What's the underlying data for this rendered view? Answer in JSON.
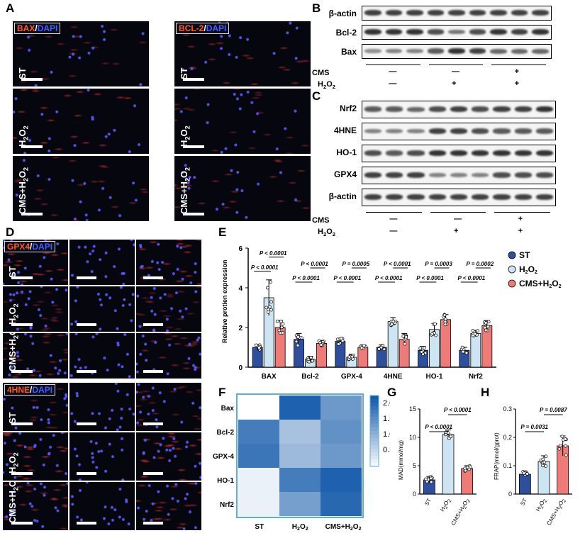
{
  "panels": {
    "A": "A",
    "B": "B",
    "C": "C",
    "D": "D",
    "E": "E",
    "F": "F",
    "G": "G",
    "H": "H"
  },
  "panelA": {
    "tag1": [
      "BAX",
      "/",
      "DAPI"
    ],
    "tag2": [
      "BCL-2",
      "/",
      "DAPI"
    ],
    "rows": [
      "ST",
      "H2O2",
      "CMS+H2O2"
    ]
  },
  "panelB": {
    "bands": [
      "β-actin",
      "Bcl-2",
      "Bax"
    ],
    "cms": [
      "—",
      "—",
      "+"
    ],
    "h2o2": [
      "—",
      "+",
      "+"
    ],
    "cms_label": "CMS",
    "h2o2_label": "H2O2"
  },
  "panelC": {
    "bands": [
      "Nrf2",
      "4HNE",
      "HO-1",
      "GPX4",
      "β-actin"
    ],
    "cms": [
      "—",
      "—",
      "+"
    ],
    "h2o2": [
      "—",
      "+",
      "+"
    ],
    "cms_label": "CMS",
    "h2o2_label": "H2O2"
  },
  "panelD": {
    "tag1": [
      "GPX4",
      "/",
      "DAPI"
    ],
    "tag2": [
      "4HNE",
      "/",
      "DAPI"
    ],
    "rows": [
      "ST",
      "H2O2",
      "CMS+H2O2"
    ]
  },
  "chart_data": [
    {
      "panel": "E",
      "type": "bar",
      "categories": [
        "BAX",
        "Bcl-2",
        "GPX-4",
        "4HNE",
        "HO-1",
        "Nrf2"
      ],
      "ylabel": "Relative protien expression",
      "ylim": [
        0,
        6
      ],
      "yticks": [
        0,
        2,
        4,
        6
      ],
      "series": [
        {
          "name": "ST",
          "color": "#2e4f9c",
          "values": [
            1.0,
            1.4,
            1.3,
            1.0,
            0.85,
            0.85
          ],
          "err": [
            0.15,
            0.3,
            0.15,
            0.12,
            0.2,
            0.15
          ]
        },
        {
          "name": "H2O2",
          "color": "#cde4f2",
          "values": [
            3.5,
            0.4,
            0.5,
            2.3,
            1.9,
            1.7
          ],
          "err": [
            0.9,
            0.15,
            0.15,
            0.2,
            0.3,
            0.15
          ]
        },
        {
          "name": "CMS+H2O2",
          "color": "#ee7b78",
          "values": [
            2.0,
            1.2,
            1.0,
            1.4,
            2.4,
            2.1
          ],
          "err": [
            0.35,
            0.15,
            0.12,
            0.3,
            0.25,
            0.25
          ]
        }
      ],
      "pvalues_lower": [
        "P < 0.0001",
        "P < 0.0001",
        "P < 0.0001",
        "P < 0.0001",
        "P < 0.0001",
        "P < 0.0001"
      ],
      "pvalues_upper": [
        "P < 0.0001",
        "P < 0.0001",
        "P = 0.0005",
        "P < 0.0001",
        "P = 0.0003",
        "P = 0.0002"
      ]
    },
    {
      "panel": "F",
      "type": "heatmap",
      "rows": [
        "Bax",
        "Bcl-2",
        "GPX-4",
        "HO-1",
        "Nrf2"
      ],
      "columns": [
        "ST",
        "H2O2",
        "CMS+H2O2"
      ],
      "values": [
        [
          0.0,
          2.3,
          1.5
        ],
        [
          1.9,
          0.9,
          1.6
        ],
        [
          2.0,
          1.0,
          1.5
        ],
        [
          0.2,
          1.9,
          2.3
        ],
        [
          0.2,
          1.4,
          2.2
        ]
      ],
      "colorbar_ticks": [
        "2.0",
        "1.5",
        "1.0",
        "0.5"
      ]
    },
    {
      "panel": "G",
      "type": "bar",
      "categories": [
        "ST",
        "H2O2",
        "CMS+H2O2"
      ],
      "ylabel": "MAD(mmol/mg)",
      "ylim": [
        0,
        15
      ],
      "yticks": [
        0,
        5,
        10,
        15
      ],
      "values": [
        2.5,
        10.5,
        4.5
      ],
      "err": [
        0.6,
        0.8,
        0.5
      ],
      "colors": [
        "#2e4f9c",
        "#cde4f2",
        "#ee7b78"
      ],
      "pvalues": [
        "P < 0.0001",
        "P < 0.0001"
      ]
    },
    {
      "panel": "H",
      "type": "bar",
      "categories": [
        "ST",
        "H2O2",
        "CMS+H2O2"
      ],
      "ylabel": "FRAP(mmol/gprot)",
      "ylim": [
        0,
        0.3
      ],
      "yticks": [
        0.0,
        0.1,
        0.2,
        0.3
      ],
      "values": [
        0.07,
        0.115,
        0.17
      ],
      "err": [
        0.01,
        0.02,
        0.035
      ],
      "colors": [
        "#2e4f9c",
        "#cde4f2",
        "#ee7b78"
      ],
      "pvalues": [
        "P = 0.0031",
        "P = 0.0087"
      ]
    }
  ],
  "legendE": [
    "ST",
    "H2O2",
    "CMS+H2O2"
  ]
}
